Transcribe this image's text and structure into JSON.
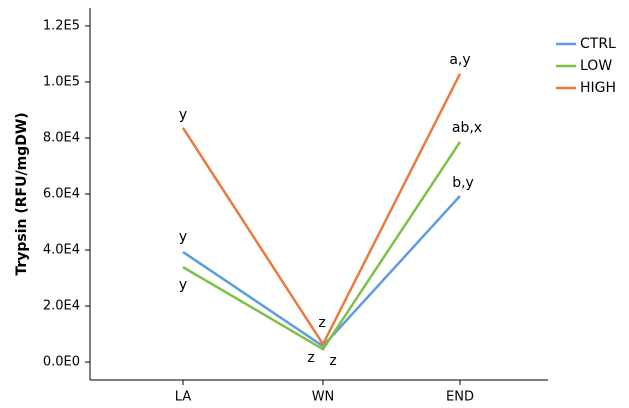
{
  "chart_data": {
    "type": "line",
    "y_label": "Trypsin (RFU/mgDW)",
    "categories": [
      "LA",
      "WN",
      "END"
    ],
    "series": [
      {
        "name": "CTRL",
        "color": "#5b9bdf",
        "values": [
          39300,
          5700,
          59300
        ],
        "annotations": [
          "y",
          "z",
          "b,y"
        ]
      },
      {
        "name": "LOW",
        "color": "#7cc242",
        "values": [
          33900,
          4600,
          78600
        ],
        "annotations": [
          "y",
          "z",
          "ab,x"
        ]
      },
      {
        "name": "HIGH",
        "color": "#ea7a3e",
        "values": [
          83600,
          6400,
          102900
        ],
        "annotations": [
          "y",
          "z",
          "a,y"
        ]
      }
    ],
    "ylim": [
      -6400,
      126400
    ],
    "yticks": [
      {
        "value": 0,
        "label": "0.0E0"
      },
      {
        "value": 20000,
        "label": "2.0E4"
      },
      {
        "value": 40000,
        "label": "4.0E4"
      },
      {
        "value": 60000,
        "label": "6.0E4"
      },
      {
        "value": 80000,
        "label": "8.0E4"
      },
      {
        "value": 100000,
        "label": "1.0E5"
      },
      {
        "value": 120000,
        "label": "1.2E5"
      }
    ],
    "legend": "top-right"
  }
}
